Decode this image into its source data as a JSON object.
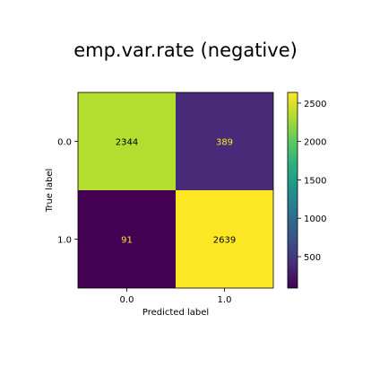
{
  "chart_data": {
    "type": "heatmap",
    "title": "emp.var.rate (negative)",
    "xlabel": "Predicted label",
    "ylabel": "True label",
    "x_categories": [
      "0.0",
      "1.0"
    ],
    "y_categories": [
      "0.0",
      "1.0"
    ],
    "matrix": [
      [
        2344,
        389
      ],
      [
        91,
        2639
      ]
    ],
    "colorbar": {
      "ticks": [
        500,
        1000,
        1500,
        2000,
        2500
      ],
      "range": [
        91,
        2639
      ],
      "colormap": "viridis"
    },
    "cell_colors": {
      "dark_text": "#000000",
      "light_text": "#fde725"
    }
  }
}
